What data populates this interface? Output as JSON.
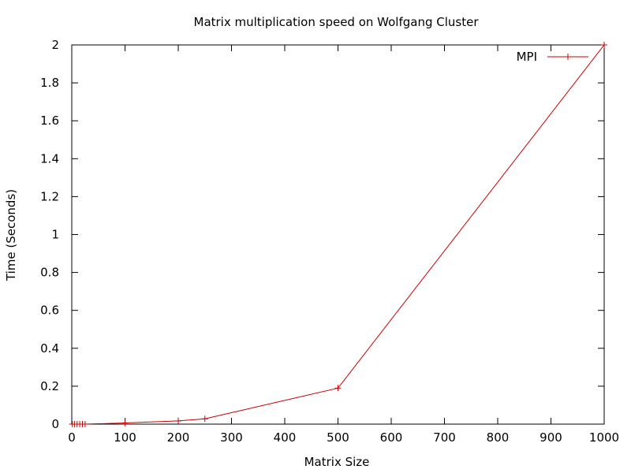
{
  "chart_data": {
    "type": "line",
    "title": "Matrix multiplication speed on Wolfgang Cluster",
    "xlabel": "Matrix Size",
    "ylabel": "Time (Seconds)",
    "xlim": [
      0,
      1000
    ],
    "ylim": [
      0,
      2
    ],
    "xticks": [
      0,
      100,
      200,
      300,
      400,
      500,
      600,
      700,
      800,
      900,
      1000
    ],
    "yticks": [
      0,
      0.2,
      0.4,
      0.6,
      0.8,
      1,
      1.2,
      1.4,
      1.6,
      1.8,
      2
    ],
    "ytick_labels": [
      "0",
      "0.2",
      "0.4",
      "0.6",
      "0.8",
      "1",
      "1.2",
      "1.4",
      "1.6",
      "1.8",
      "2"
    ],
    "grid": false,
    "legend_position": "top-right",
    "series": [
      {
        "name": "MPI",
        "color": "#cc0000",
        "marker": "plus",
        "x": [
          1,
          5,
          10,
          15,
          20,
          25,
          100,
          200,
          250,
          500,
          1000
        ],
        "y": [
          0.0,
          0.0,
          0.0,
          0.0,
          0.0,
          0.0,
          0.006,
          0.017,
          0.028,
          0.19,
          2.0
        ]
      }
    ]
  }
}
